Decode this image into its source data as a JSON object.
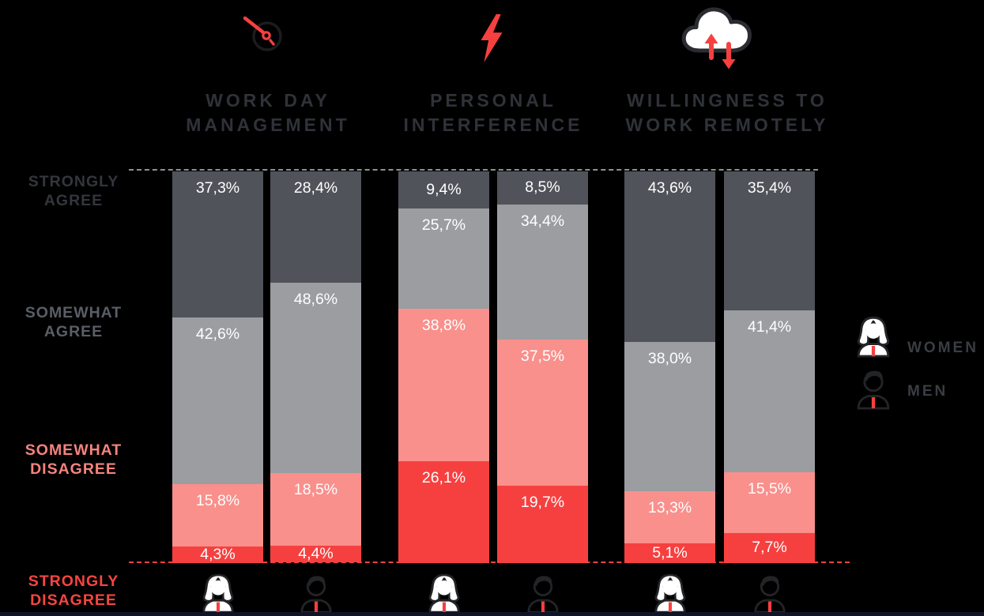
{
  "page": {
    "background": "#000000",
    "footer_bar_color": "#0F1526"
  },
  "chart_data": {
    "type": "bar",
    "stacked": true,
    "unit": "%",
    "value_range": [
      0,
      100
    ],
    "value_label_color": "#FFFFFF",
    "decimal_separator": ",",
    "segments_top_to_bottom": [
      "STRONGLY AGREE",
      "SOMEWHAT AGREE",
      "SOMEWHAT DISAGREE",
      "STRONGLY DISAGREE"
    ],
    "segment_colors": [
      "#50535A",
      "#9B9DA1",
      "#F9908C",
      "#F64040"
    ],
    "row_labels": [
      {
        "lines": [
          "STRONGLY",
          "AGREE"
        ],
        "color": "#33363C"
      },
      {
        "lines": [
          "SOMEWHAT",
          "AGREE"
        ],
        "color": "#5A5E66"
      },
      {
        "lines": [
          "SOMEWHAT",
          "DISAGREE"
        ],
        "color": "#F5837E"
      },
      {
        "lines": [
          "STRONGLY",
          "DISAGREE"
        ],
        "color": "#F64541"
      }
    ],
    "gridlines": {
      "top": {
        "style": "dashed",
        "color": "#8E9095",
        "value": 100
      },
      "bottom": {
        "style": "dashed",
        "color": "#F64040",
        "value": 0
      }
    },
    "groups": [
      {
        "title_lines": [
          "WORK DAY",
          "MANAGEMENT"
        ],
        "icon": "clock-icon",
        "bars": [
          {
            "series": "WOMEN",
            "icon": "woman-icon",
            "values": [
              37.3,
              42.6,
              15.8,
              4.3
            ],
            "labels": [
              "37,3%",
              "42,6%",
              "15,8%",
              "4,3%"
            ]
          },
          {
            "series": "MEN",
            "icon": "man-icon",
            "values": [
              28.4,
              48.6,
              18.5,
              4.4
            ],
            "labels": [
              "28,4%",
              "48,6%",
              "18,5%",
              "4,4%"
            ]
          }
        ]
      },
      {
        "title_lines": [
          "PERSONAL",
          "INTERFERENCE"
        ],
        "icon": "lightning-icon",
        "bars": [
          {
            "series": "WOMEN",
            "icon": "woman-icon",
            "values": [
              9.4,
              25.7,
              38.8,
              26.1
            ],
            "labels": [
              "9,4%",
              "25,7%",
              "38,8%",
              "26,1%"
            ]
          },
          {
            "series": "MEN",
            "icon": "man-icon",
            "values": [
              8.5,
              34.4,
              37.5,
              19.7
            ],
            "labels": [
              "8,5%",
              "34,4%",
              "37,5%",
              "19,7%"
            ]
          }
        ]
      },
      {
        "title_lines": [
          "WILLINGNESS TO",
          "WORK REMOTELY"
        ],
        "icon": "cloud-sync-icon",
        "bars": [
          {
            "series": "WOMEN",
            "icon": "woman-icon",
            "values": [
              43.6,
              38.0,
              13.3,
              5.1
            ],
            "labels": [
              "43,6%",
              "38,0%",
              "13,3%",
              "5,1%"
            ]
          },
          {
            "series": "MEN",
            "icon": "man-icon",
            "values": [
              35.4,
              41.4,
              15.5,
              7.7
            ],
            "labels": [
              "35,4%",
              "41,4%",
              "15,5%",
              "7,7%"
            ]
          }
        ]
      }
    ],
    "legend": {
      "position": "right",
      "label_color": "#3A3D43",
      "items": [
        {
          "label": "WOMEN",
          "icon": "woman-icon"
        },
        {
          "label": "MEN",
          "icon": "man-icon"
        }
      ]
    },
    "accent_color": "#F64040",
    "title_color": "#2F3238"
  }
}
